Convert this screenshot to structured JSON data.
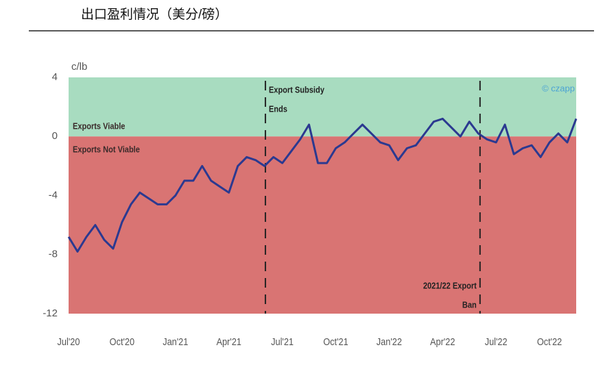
{
  "header": {
    "title": "出口盈利情况（美分/磅）"
  },
  "chart_data": {
    "type": "line",
    "y_unit": "c/lb",
    "watermark": "© czapp",
    "categories": [
      "Jul'20",
      null,
      null,
      null,
      null,
      null,
      "Oct'20",
      null,
      null,
      null,
      null,
      null,
      "Jan'21",
      null,
      null,
      null,
      null,
      null,
      "Apr'21",
      null,
      null,
      null,
      null,
      null,
      "Jul'21",
      null,
      null,
      null,
      null,
      null,
      "Oct'21",
      null,
      null,
      null,
      null,
      null,
      "Jan'22",
      null,
      null,
      null,
      null,
      null,
      "Apr'22",
      null,
      null,
      null,
      null,
      null,
      "Jul'22",
      null,
      null,
      null,
      null,
      null,
      "Oct'22",
      null,
      null,
      null
    ],
    "values": [
      -6.8,
      -7.8,
      -6.8,
      -6.0,
      -7.0,
      -7.6,
      -5.8,
      -4.6,
      -3.8,
      -4.2,
      -4.6,
      -4.6,
      -4.0,
      -3.0,
      -3.0,
      -2.0,
      -3.0,
      -3.4,
      -3.8,
      -2.0,
      -1.4,
      -1.6,
      -2.0,
      -1.4,
      -1.8,
      -1.0,
      -0.2,
      0.8,
      -1.8,
      -1.8,
      -0.8,
      -0.4,
      0.2,
      0.8,
      0.2,
      -0.4,
      -0.6,
      -1.6,
      -0.8,
      -0.6,
      0.2,
      1.0,
      1.2,
      0.6,
      0.0,
      1.0,
      0.2,
      -0.2,
      -0.4,
      0.8,
      -1.2,
      -0.8,
      -0.6,
      -1.4,
      -0.4,
      0.2,
      -0.4,
      1.2
    ],
    "color": "#2b3990",
    "ylim": [
      -12,
      4
    ],
    "yticks": [
      -12,
      -8,
      -4,
      0,
      4
    ],
    "regions": [
      {
        "label": "Exports Viable",
        "from": 0,
        "to": 4,
        "color": "#a8dcc0"
      },
      {
        "label": "Exports Not Viable",
        "from": -12,
        "to": 0,
        "color": "#d97473"
      }
    ],
    "events": [
      {
        "at": 22.1,
        "lines": [
          "Export Subsidy",
          "Ends"
        ]
      },
      {
        "at": 46.2,
        "lines": [
          "2021/22 Export",
          "Ban"
        ]
      }
    ]
  }
}
